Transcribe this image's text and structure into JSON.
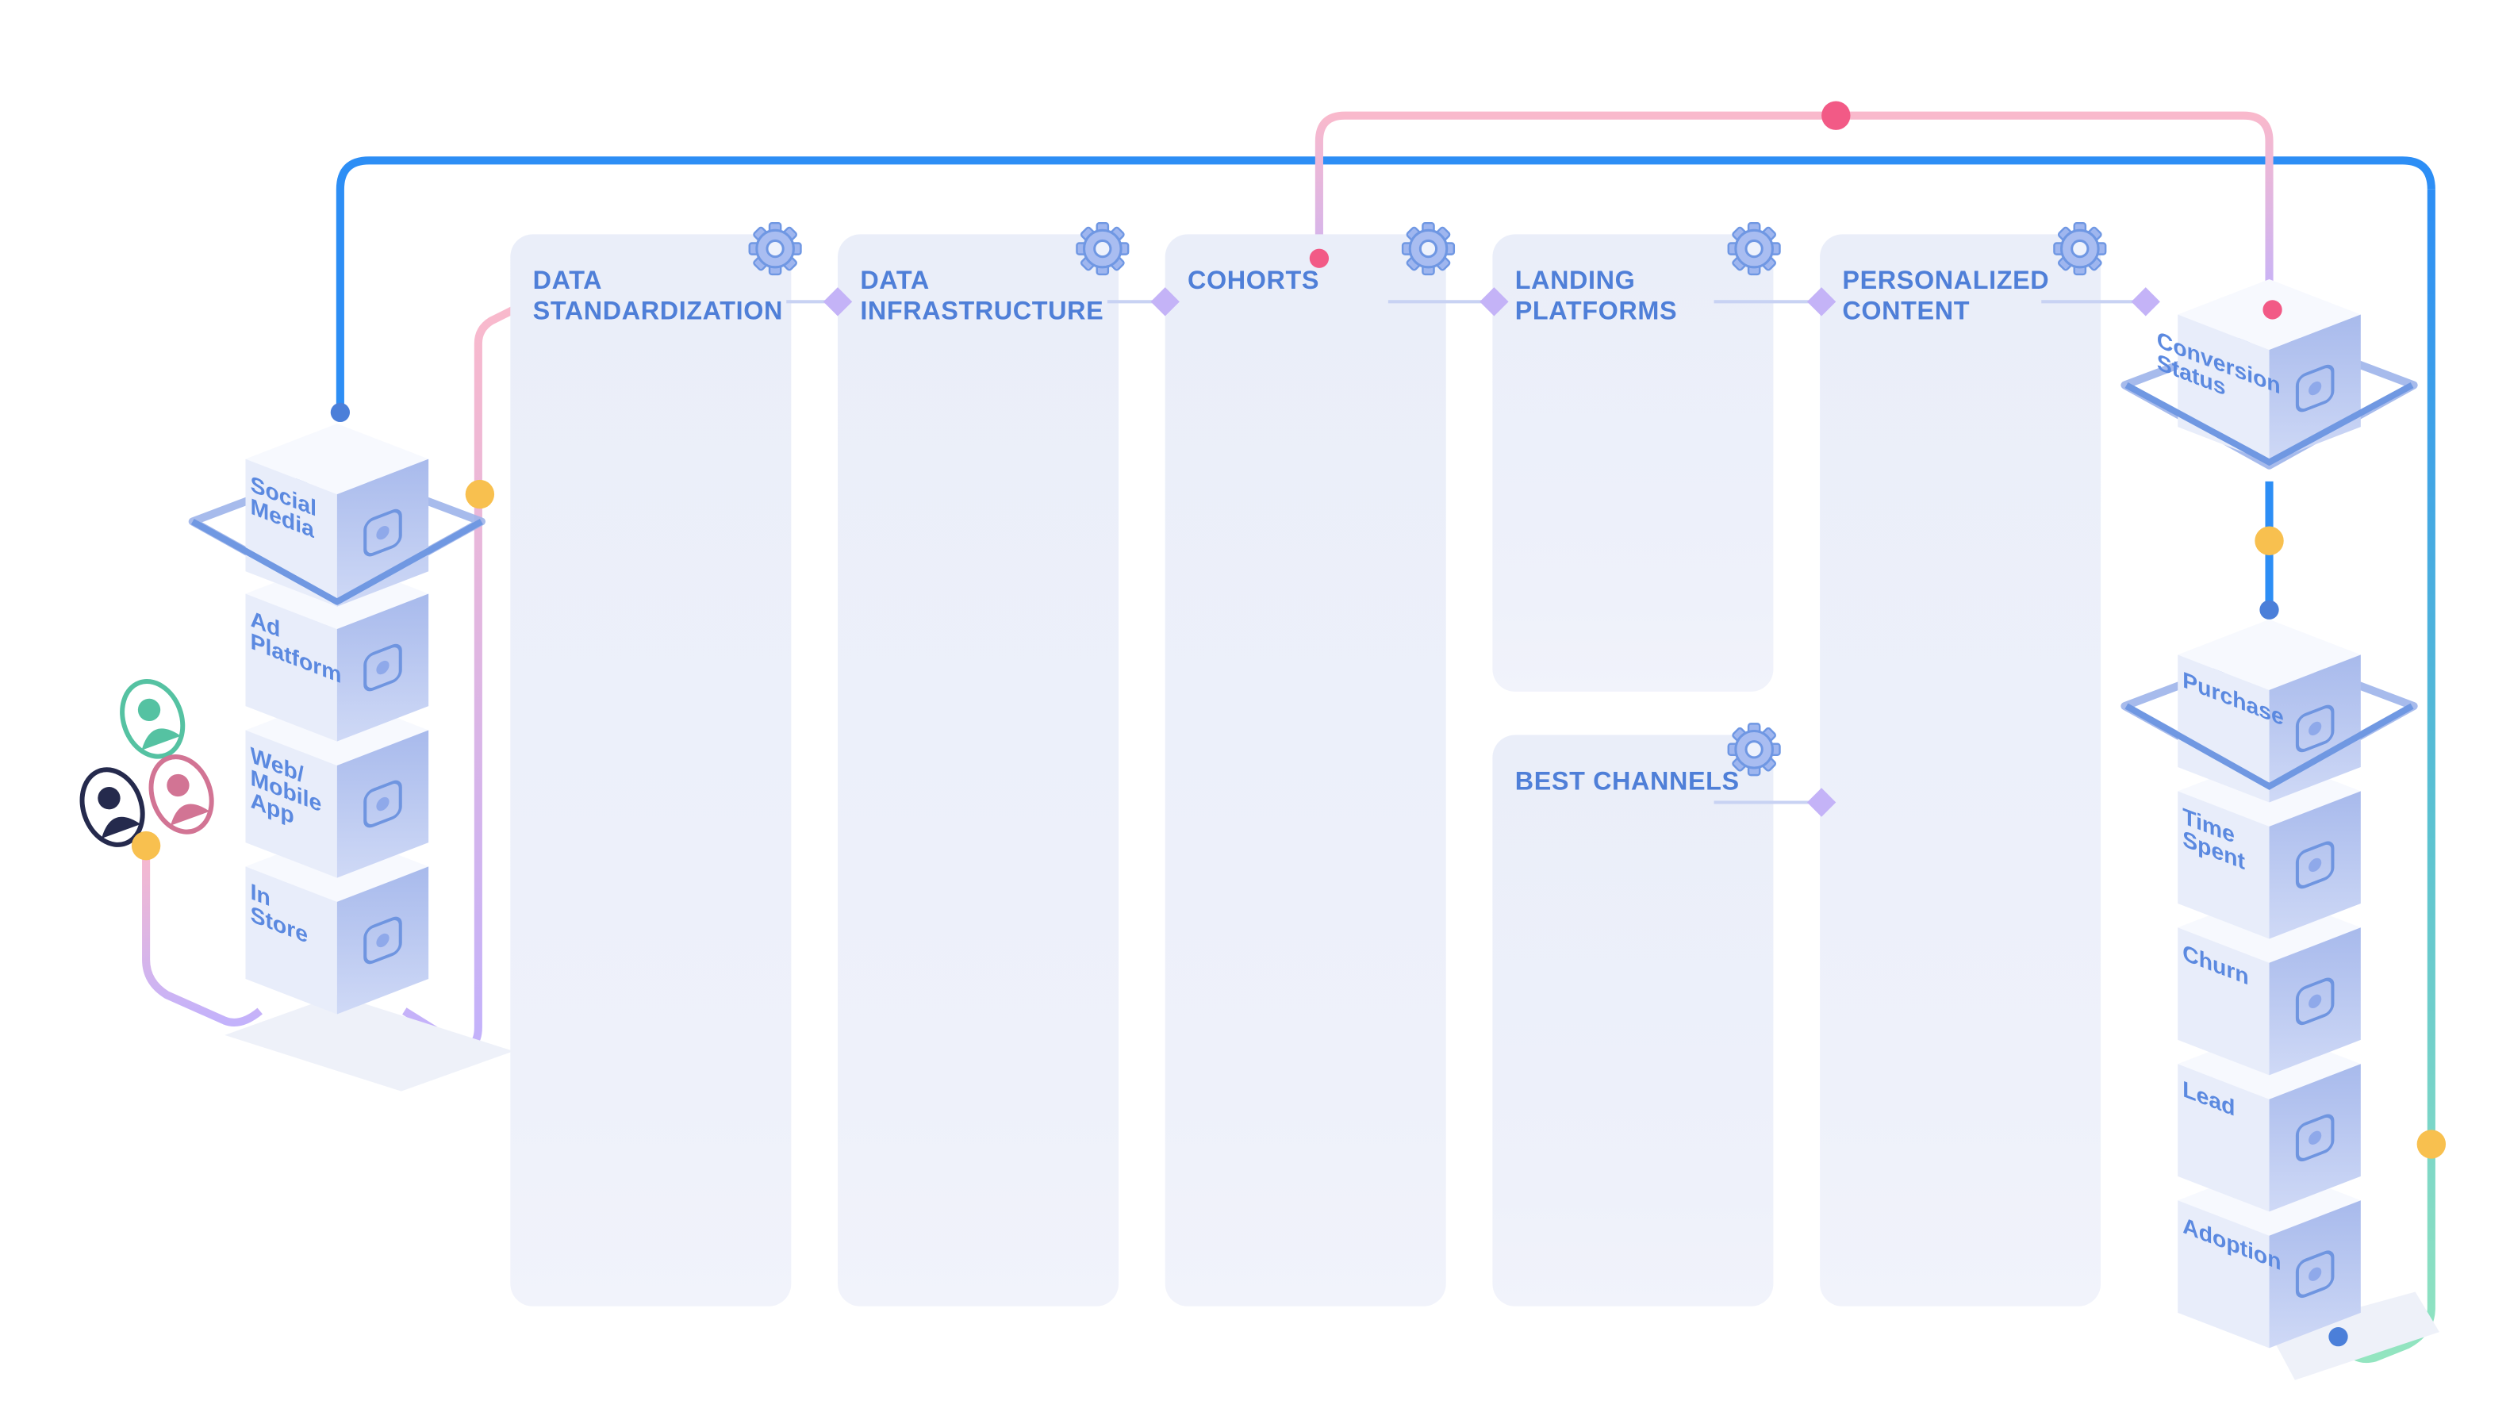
{
  "columns": [
    {
      "title": "DATA\nSTANDARDIZATION"
    },
    {
      "title": "DATA\nINFRASTRUCTURE"
    },
    {
      "title": "COHORTS"
    },
    {
      "title": "LANDING\nPLATFORMS"
    },
    {
      "title": "PERSONALIZED\nCONTENT"
    },
    {
      "title": "BEST CHANNELS"
    }
  ],
  "source_stack": [
    {
      "label": "Social\nMedia",
      "icon": "chat-bubbles-icon"
    },
    {
      "label": "Ad\nPlatform",
      "icon": "ad-platform-icon"
    },
    {
      "label": "Web/\nMobile\nApp",
      "icon": "app-store-icon"
    },
    {
      "label": "In\nStore",
      "icon": "storefront-icon"
    }
  ],
  "outcome_stack": [
    {
      "label": "Conversion\nStatus",
      "icon": "person-icon"
    },
    {
      "label": "Purchase",
      "icon": "price-tag-icon"
    },
    {
      "label": "Time\nSpent",
      "icon": "clock-icon"
    },
    {
      "label": "Churn",
      "icon": "declining-chart-icon"
    },
    {
      "label": "Lead",
      "icon": "users-check-icon"
    },
    {
      "label": "Adoption",
      "icon": "user-heart-icon"
    }
  ],
  "users": [
    {
      "color": "#55c2a2"
    },
    {
      "color": "#252a4d"
    },
    {
      "color": "#d27494"
    }
  ],
  "colors": {
    "title": "#4f7fd8",
    "blue_line": "#2d8ef5",
    "pink_line": "#f9b9cc",
    "purple_line": "#c3b2fb",
    "green_line": "#93e5c0",
    "connector": "#c4b3f7",
    "dot_orange": "#f8c04f",
    "dot_red": "#f25a86",
    "dot_blue": "#4b7fd9"
  }
}
